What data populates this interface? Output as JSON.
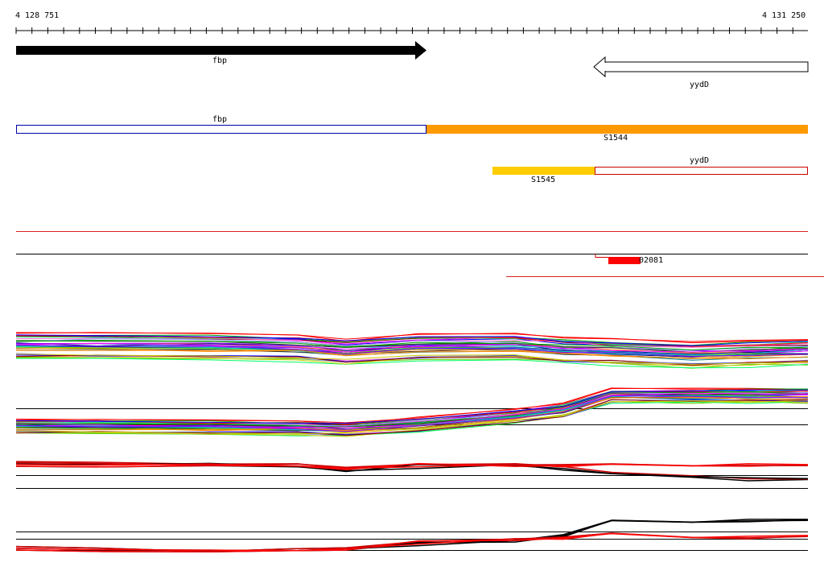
{
  "ruler": {
    "start": "4 128 751",
    "end": "4 131 250"
  },
  "genes": [
    {
      "name": "fbp",
      "strand": "forward",
      "color": "#000000"
    },
    {
      "name": "yydD",
      "strand": "reverse",
      "color": "#ffffff"
    }
  ],
  "segments": [
    {
      "label": "fbp",
      "color": "#0000aa"
    },
    {
      "label": "S1544",
      "color": "#ff9900"
    },
    {
      "label": "yydD",
      "color": "#cc0000"
    },
    {
      "label": "S1545",
      "color": "#ffcc00"
    }
  ],
  "feature_label": "02081",
  "colors": {
    "accent_red": "#ff0000",
    "orange": "#ff9900",
    "yellow": "#ffcc00"
  }
}
